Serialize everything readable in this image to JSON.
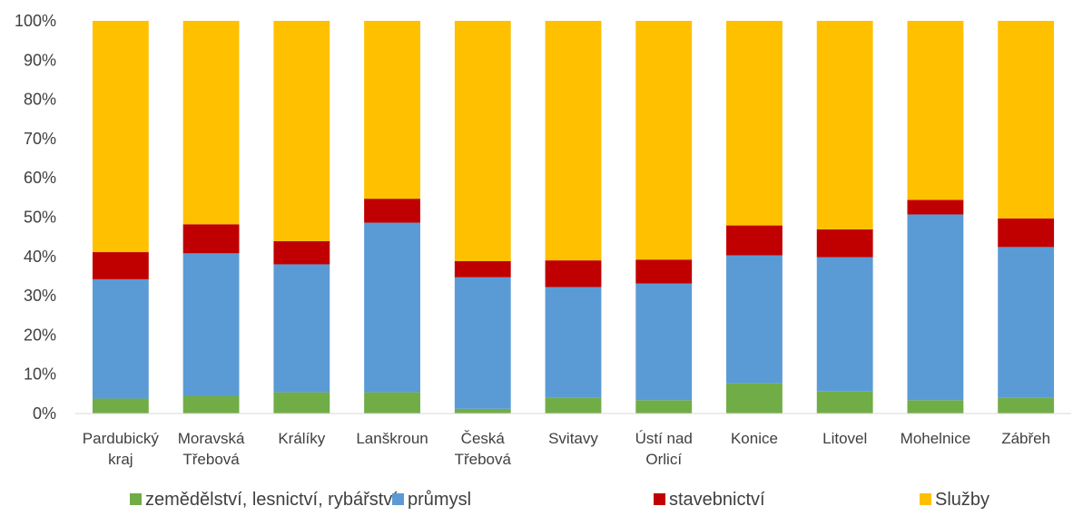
{
  "chart_data": {
    "type": "bar",
    "stacked": true,
    "percent": true,
    "categories": [
      [
        "Pardubický",
        "kraj"
      ],
      [
        "Moravská",
        "Třebová"
      ],
      [
        "Králíky"
      ],
      [
        "Lanškroun"
      ],
      [
        "Česká",
        "Třebová"
      ],
      [
        "Svitavy"
      ],
      [
        "Ústí nad",
        "Orlicí"
      ],
      [
        "Konice"
      ],
      [
        "Litovel"
      ],
      [
        "Mohelnice"
      ],
      [
        "Zábřeh"
      ]
    ],
    "series": [
      {
        "name": "zemědělství, lesnictví, rybářství",
        "color": "#70ad47",
        "values": [
          3.8,
          4.5,
          5.4,
          5.4,
          1.2,
          4.0,
          3.4,
          7.7,
          5.6,
          3.4,
          4.0
        ]
      },
      {
        "name": "průmysl",
        "color": "#5b9bd5",
        "values": [
          30.4,
          36.3,
          32.6,
          43.2,
          33.5,
          28.2,
          29.7,
          32.6,
          34.2,
          47.3,
          38.4
        ]
      },
      {
        "name": "stavebnictví",
        "color": "#c00000",
        "values": [
          6.9,
          7.4,
          5.9,
          6.1,
          4.1,
          6.8,
          6.1,
          7.6,
          7.1,
          3.7,
          7.3
        ]
      },
      {
        "name": "Služby",
        "color": "#ffc000",
        "values": [
          58.9,
          51.8,
          56.1,
          45.3,
          61.2,
          61.0,
          60.8,
          52.1,
          53.1,
          45.6,
          50.3
        ]
      }
    ],
    "y_ticks": [
      "0%",
      "10%",
      "20%",
      "30%",
      "40%",
      "50%",
      "60%",
      "70%",
      "80%",
      "90%",
      "100%"
    ],
    "ylim": [
      0,
      100
    ],
    "grid": false,
    "legend_position": "bottom"
  }
}
